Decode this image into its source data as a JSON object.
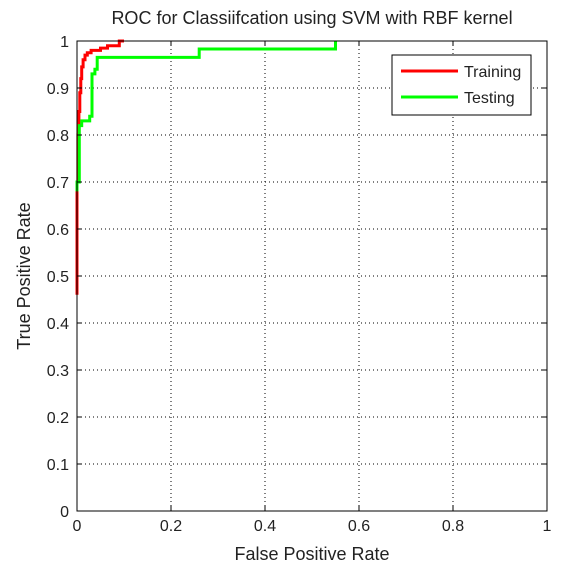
{
  "chart_data": {
    "type": "line",
    "title": "ROC for Classiifcation using SVM with RBF kernel",
    "xlabel": "False Positive Rate",
    "ylabel": "True Positive Rate",
    "xlim": [
      0,
      1
    ],
    "ylim": [
      0,
      1
    ],
    "xticks": [
      0,
      0.2,
      0.4,
      0.6,
      0.8,
      1
    ],
    "yticks": [
      0,
      0.1,
      0.2,
      0.3,
      0.4,
      0.5,
      0.6,
      0.7,
      0.8,
      0.9,
      1
    ],
    "xtick_labels": [
      "0",
      "0.2",
      "0.4",
      "0.6",
      "0.8",
      "1"
    ],
    "ytick_labels": [
      "0",
      "0.1",
      "0.2",
      "0.3",
      "0.4",
      "0.5",
      "0.6",
      "0.7",
      "0.8",
      "0.9",
      "1"
    ],
    "grid": true,
    "legend_position": "top-right",
    "series": [
      {
        "name": "Training",
        "color": "#ff0000",
        "x": [
          0,
          0,
          0.002,
          0.002,
          0.004,
          0.004,
          0.006,
          0.006,
          0.008,
          0.008,
          0.01,
          0.01,
          0.013,
          0.013,
          0.017,
          0.017,
          0.022,
          0.022,
          0.03,
          0.03,
          0.05,
          0.05,
          0.065,
          0.065,
          0.09,
          0.09,
          0.1
        ],
        "y": [
          0.46,
          0.7,
          0.7,
          0.8,
          0.8,
          0.85,
          0.85,
          0.89,
          0.89,
          0.92,
          0.92,
          0.945,
          0.945,
          0.96,
          0.96,
          0.97,
          0.97,
          0.975,
          0.975,
          0.98,
          0.98,
          0.985,
          0.985,
          0.99,
          0.99,
          1.0,
          1.0
        ]
      },
      {
        "name": "Testing",
        "color": "#00ff00",
        "x": [
          0,
          0,
          0.005,
          0.005,
          0.01,
          0.01,
          0.027,
          0.027,
          0.032,
          0.032,
          0.038,
          0.038,
          0.043,
          0.043,
          0.26,
          0.26,
          0.55,
          0.55
        ],
        "y": [
          0.68,
          0.7,
          0.7,
          0.82,
          0.82,
          0.83,
          0.83,
          0.84,
          0.84,
          0.93,
          0.93,
          0.94,
          0.94,
          0.965,
          0.965,
          0.983,
          0.983,
          1.0
        ]
      }
    ]
  }
}
